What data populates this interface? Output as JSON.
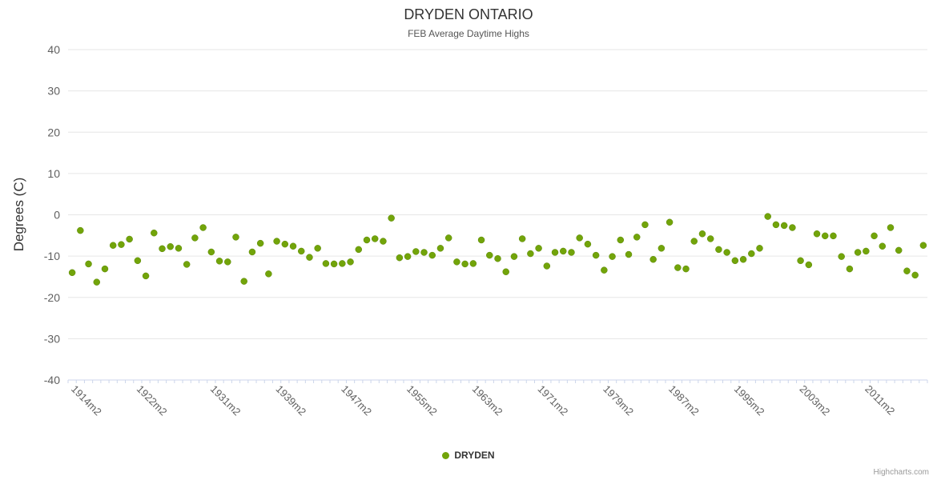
{
  "header": {
    "title": "DRYDEN ONTARIO",
    "subtitle": "FEB Average Daytime Highs"
  },
  "legend": {
    "items": [
      {
        "label": "DRYDEN",
        "color": "#72a40a"
      }
    ]
  },
  "credits": "Highcharts.com",
  "colors": {
    "marker": "#72a40a",
    "marker_edge": "#5c8708",
    "gridline": "#e6e6e6",
    "axis_line": "#ccd6eb",
    "axis_label": "#606060"
  },
  "chart_data": {
    "type": "scatter",
    "title": "DRYDEN ONTARIO",
    "subtitle": "FEB Average Daytime Highs",
    "xlabel": "",
    "ylabel": "Degrees (C)",
    "ylim": [
      -40,
      40
    ],
    "y_ticks": [
      40,
      30,
      20,
      10,
      0,
      -10,
      -20,
      -30,
      -40
    ],
    "grid": true,
    "legend_position": "bottom",
    "x_start_year": 1914,
    "x_suffix": "m2",
    "x_tick_labels": [
      "1914m2",
      "1922m2",
      "1931m2",
      "1939m2",
      "1947m2",
      "1955m2",
      "1963m2",
      "1971m2",
      "1979m2",
      "1987m2",
      "1995m2",
      "2003m2",
      "2011m2"
    ],
    "series": [
      {
        "name": "DRYDEN",
        "color": "#72a40a",
        "values": [
          -14.0,
          -3.8,
          -11.9,
          -16.3,
          -13.1,
          -7.4,
          -7.2,
          -5.9,
          -11.1,
          -14.8,
          -4.4,
          -8.2,
          -7.7,
          -8.1,
          -12.0,
          -5.6,
          -3.1,
          -9.0,
          -11.2,
          -11.4,
          -5.4,
          -16.1,
          -9.0,
          -6.9,
          -14.3,
          -6.4,
          -7.1,
          -7.6,
          -8.8,
          -10.3,
          -8.1,
          -11.8,
          -11.9,
          -11.8,
          -11.4,
          -8.4,
          -6.1,
          -5.8,
          -6.4,
          -0.8,
          -10.4,
          -10.1,
          -8.9,
          -9.1,
          -9.8,
          -8.1,
          -5.6,
          -11.4,
          -11.9,
          -11.8,
          -6.1,
          -9.8,
          -10.6,
          -13.8,
          -10.1,
          -5.8,
          -9.4,
          -8.1,
          -12.4,
          -9.1,
          -8.8,
          -9.1,
          -5.6,
          -7.1,
          -9.8,
          -13.4,
          -10.1,
          -6.1,
          -9.6,
          -5.4,
          -2.4,
          -10.8,
          -8.1,
          -1.8,
          -12.8,
          -13.1,
          -6.4,
          -4.6,
          -5.8,
          -8.4,
          -9.1,
          -11.1,
          -10.8,
          -9.4,
          -8.1,
          -0.4,
          -2.4,
          -2.6,
          -3.1,
          -11.1,
          -12.1,
          -4.6,
          -5.1,
          -5.1,
          -10.1,
          -13.1,
          -9.1,
          -8.8,
          -5.1,
          -7.6,
          -3.1,
          -8.6,
          -13.6,
          -14.6,
          -7.4
        ]
      }
    ]
  }
}
